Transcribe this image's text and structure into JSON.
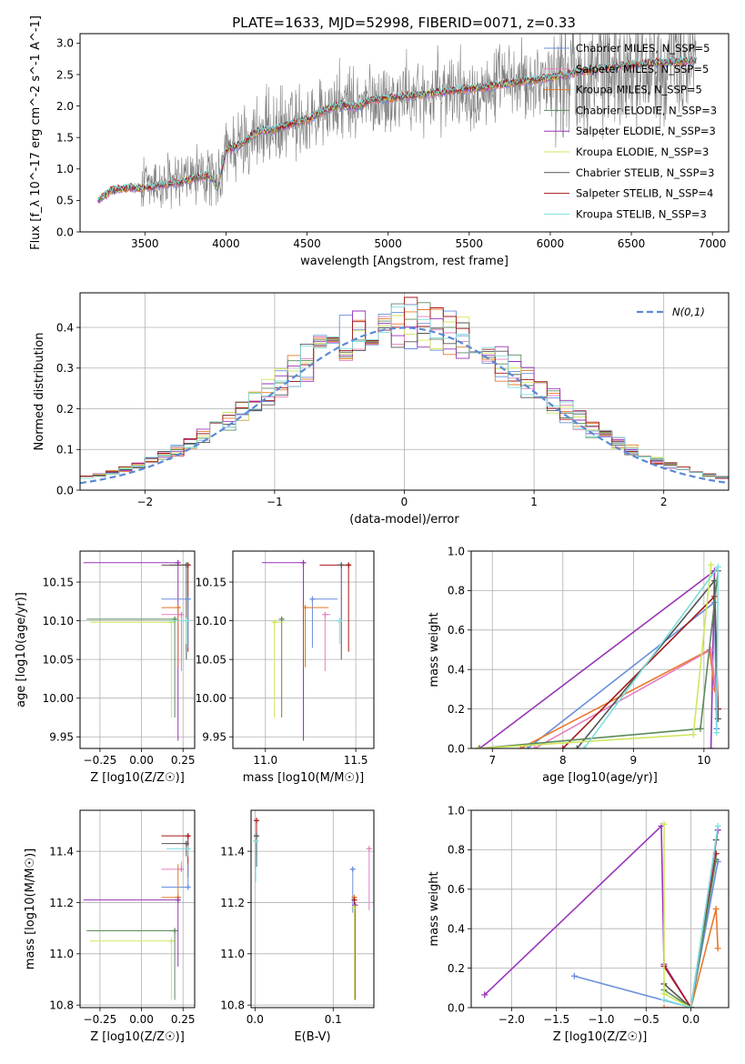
{
  "figure": {
    "title": "PLATE=1633, MJD=52998, FIBERID=0071, z=0.33"
  },
  "chart_data": [
    {
      "id": "spectrum",
      "type": "line",
      "xlabel": "wavelength [Angstrom, rest frame]",
      "ylabel": "Flux [f_λ 10^-17 erg cm^-2 s^-1 A^-1]",
      "xlim": [
        3100,
        7100
      ],
      "ylim": [
        0,
        3.15
      ],
      "xticks": [
        3500,
        4000,
        4500,
        5000,
        5500,
        6000,
        6500,
        7000
      ],
      "yticks": [
        0.0,
        0.5,
        1.0,
        1.5,
        2.0,
        2.5,
        3.0
      ],
      "grid": false,
      "legend_position": "top-right",
      "data_range": [
        3210,
        6900
      ],
      "continuum_anchors": {
        "x": [
          3210,
          3300,
          3400,
          3500,
          3600,
          3700,
          3800,
          3900,
          3950,
          4000,
          4100,
          4200,
          4300,
          4400,
          4500,
          4600,
          4700,
          4800,
          4900,
          5000,
          5200,
          5400,
          5600,
          5800,
          6000,
          6200,
          6400,
          6600,
          6900
        ],
        "y": [
          0.5,
          0.66,
          0.7,
          0.7,
          0.75,
          0.78,
          0.85,
          0.9,
          0.7,
          1.3,
          1.4,
          1.6,
          1.62,
          1.72,
          1.78,
          1.92,
          2.02,
          1.98,
          2.1,
          2.12,
          2.18,
          2.25,
          2.3,
          2.38,
          2.45,
          2.55,
          2.62,
          2.68,
          2.72
        ]
      },
      "series": [
        {
          "name": "Chabrier MILES, N_SSP=5",
          "color": "#6a8fdc"
        },
        {
          "name": "Salpeter MILES, N_SSP=5",
          "color": "#e57fbf"
        },
        {
          "name": "Kroupa MILES, N_SSP=5",
          "color": "#e8792a"
        },
        {
          "name": "Chabrier ELODIE, N_SSP=3",
          "color": "#5c8a5c"
        },
        {
          "name": "Salpeter ELODIE, N_SSP=3",
          "color": "#9a35b8"
        },
        {
          "name": "Kroupa ELODIE, N_SSP=3",
          "color": "#cfe65c"
        },
        {
          "name": "Chabrier STELIB, N_SSP=3",
          "color": "#555555"
        },
        {
          "name": "Salpeter STELIB, N_SSP=4",
          "color": "#a81818"
        },
        {
          "name": "Kroupa STELIB, N_SSP=3",
          "color": "#7fdede"
        }
      ],
      "data_color": "#808080"
    },
    {
      "id": "residuals",
      "type": "line",
      "xlabel": "(data-model)/error",
      "ylabel": "Normed distribution",
      "xlim": [
        -2.5,
        2.5
      ],
      "ylim": [
        0,
        0.485
      ],
      "xticks": [
        -2,
        -1,
        0,
        1,
        2
      ],
      "yticks": [
        0.0,
        0.1,
        0.2,
        0.3,
        0.4
      ],
      "grid": true,
      "legend_position": "top-right",
      "legend_label": "N(0,1)",
      "reference_curve": {
        "mean": 0,
        "sigma": 1,
        "color": "#5b8ad6"
      },
      "bin_width": 0.1,
      "histogram_colors": [
        "#6a8fdc",
        "#e57fbf",
        "#e8792a",
        "#5c8a5c",
        "#9a35b8",
        "#cfe65c",
        "#555555",
        "#a81818",
        "#7fdede"
      ]
    },
    {
      "id": "age-vs-Z",
      "type": "scatter",
      "xlabel": "Z [log10(Z/Z☉)]",
      "ylabel": "age [log10(age/yr)]",
      "xlim": [
        -0.37,
        0.32
      ],
      "ylim": [
        9.935,
        10.19
      ],
      "xticks": [
        -0.25,
        0.0,
        0.25
      ],
      "yticks": [
        9.95,
        10.0,
        10.05,
        10.1,
        10.15
      ],
      "grid": true,
      "points": [
        {
          "x": 0.22,
          "y": 10.175,
          "x0": -0.35,
          "y0": 9.945,
          "color": "#9a35b8"
        },
        {
          "x": 0.28,
          "y": 10.172,
          "x0": 0.17,
          "y0": 10.06,
          "color": "#a81818"
        },
        {
          "x": 0.27,
          "y": 10.172,
          "x0": 0.12,
          "y0": 10.05,
          "color": "#555555"
        },
        {
          "x": 0.28,
          "y": 10.128,
          "x0": 0.12,
          "y0": 10.065,
          "color": "#6a8fdc"
        },
        {
          "x": 0.22,
          "y": 10.117,
          "x0": 0.12,
          "y0": 10.04,
          "color": "#e8792a"
        },
        {
          "x": 0.24,
          "y": 10.108,
          "x0": 0.12,
          "y0": 10.035,
          "color": "#e57fbf"
        },
        {
          "x": 0.2,
          "y": 10.102,
          "x0": -0.33,
          "y0": 9.975,
          "color": "#5c8a5c"
        },
        {
          "x": 0.27,
          "y": 10.1,
          "x0": 0.15,
          "y0": 10.07,
          "color": "#7fdede"
        },
        {
          "x": 0.18,
          "y": 10.098,
          "x0": -0.31,
          "y0": 9.975,
          "color": "#cfe65c"
        }
      ]
    },
    {
      "id": "age-vs-mass",
      "type": "scatter",
      "xlabel": "mass [log10(M/M☉)]",
      "ylabel": "",
      "xlim": [
        10.82,
        11.6
      ],
      "ylim": [
        9.935,
        10.19
      ],
      "xticks": [
        11.0,
        11.5
      ],
      "yticks": [
        9.95,
        10.0,
        10.05,
        10.1,
        10.15
      ],
      "grid": true,
      "points": [
        {
          "x": 11.21,
          "y": 10.175,
          "x0": 10.98,
          "y0": 9.945,
          "color": "#9a35b8"
        },
        {
          "x": 11.46,
          "y": 10.172,
          "x0": 11.3,
          "y0": 10.06,
          "color": "#a81818"
        },
        {
          "x": 11.42,
          "y": 10.172,
          "x0": 11.4,
          "y0": 10.05,
          "color": "#555555"
        },
        {
          "x": 11.26,
          "y": 10.128,
          "x0": 11.4,
          "y0": 10.065,
          "color": "#6a8fdc"
        },
        {
          "x": 11.22,
          "y": 10.117,
          "x0": 11.35,
          "y0": 10.04,
          "color": "#e8792a"
        },
        {
          "x": 11.33,
          "y": 10.108,
          "x0": 11.36,
          "y0": 10.035,
          "color": "#e57fbf"
        },
        {
          "x": 11.09,
          "y": 10.102,
          "x0": 11.1,
          "y0": 9.975,
          "color": "#5c8a5c"
        },
        {
          "x": 11.41,
          "y": 10.1,
          "x0": 11.38,
          "y0": 10.07,
          "color": "#7fdede"
        },
        {
          "x": 11.05,
          "y": 10.098,
          "x0": 11.1,
          "y0": 9.975,
          "color": "#cfe65c"
        }
      ]
    },
    {
      "id": "mass-weight-vs-age",
      "type": "line",
      "xlabel": "age [log10(age/yr)]",
      "ylabel": "mass weight",
      "xlim": [
        6.7,
        10.35
      ],
      "ylim": [
        0,
        1.0
      ],
      "xticks": [
        7,
        8,
        9,
        10
      ],
      "yticks": [
        0.0,
        0.2,
        0.4,
        0.6,
        0.8,
        1.0
      ],
      "grid": true,
      "series": [
        {
          "color": "#9a35b8",
          "x": [
            6.82,
            10.15,
            10.1
          ],
          "y": [
            0.0,
            0.9,
            0.0
          ]
        },
        {
          "color": "#6a8fdc",
          "x": [
            7.5,
            10.15,
            10.18
          ],
          "y": [
            0.0,
            0.74,
            0.1
          ]
        },
        {
          "color": "#e8792a",
          "x": [
            7.4,
            10.08,
            10.15
          ],
          "y": [
            0.0,
            0.5,
            0.3
          ]
        },
        {
          "color": "#e57fbf",
          "x": [
            7.6,
            10.1,
            10.2
          ],
          "y": [
            0.0,
            0.5,
            0.2
          ]
        },
        {
          "color": "#a81818",
          "x": [
            8.0,
            10.15,
            10.2
          ],
          "y": [
            0.0,
            0.77,
            0.2
          ]
        },
        {
          "color": "#555555",
          "x": [
            8.2,
            10.15,
            10.2
          ],
          "y": [
            0.0,
            0.85,
            0.15
          ]
        },
        {
          "color": "#5c8a5c",
          "x": [
            6.8,
            9.95,
            10.2
          ],
          "y": [
            0.0,
            0.1,
            0.9
          ]
        },
        {
          "color": "#cfe65c",
          "x": [
            6.8,
            9.85,
            10.1
          ],
          "y": [
            0.0,
            0.07,
            0.93
          ]
        },
        {
          "color": "#7fdede",
          "x": [
            8.3,
            10.2,
            10.18
          ],
          "y": [
            0.0,
            0.92,
            0.08
          ]
        }
      ]
    },
    {
      "id": "mass-vs-Z",
      "type": "scatter",
      "xlabel": "Z [log10(Z/Z☉)]",
      "ylabel": "mass [log10(M/M☉)]",
      "xlim": [
        -0.37,
        0.32
      ],
      "ylim": [
        10.79,
        11.56
      ],
      "xticks": [
        -0.25,
        0.0,
        0.25
      ],
      "yticks": [
        10.8,
        11.0,
        11.2,
        11.4
      ],
      "grid": true,
      "points": [
        {
          "x": 0.28,
          "y": 11.46,
          "x0": 0.12,
          "y0": 11.3,
          "color": "#a81818"
        },
        {
          "x": 0.27,
          "y": 11.43,
          "x0": 0.12,
          "y0": 11.38,
          "color": "#555555"
        },
        {
          "x": 0.28,
          "y": 11.41,
          "x0": 0.15,
          "y0": 11.38,
          "color": "#7fdede"
        },
        {
          "x": 0.24,
          "y": 11.33,
          "x0": 0.12,
          "y0": 11.36,
          "color": "#e57fbf"
        },
        {
          "x": 0.28,
          "y": 11.26,
          "x0": 0.12,
          "y0": 11.35,
          "color": "#6a8fdc"
        },
        {
          "x": 0.22,
          "y": 11.22,
          "x0": 0.12,
          "y0": 11.35,
          "color": "#e8792a"
        },
        {
          "x": 0.22,
          "y": 11.21,
          "x0": -0.35,
          "y0": 10.95,
          "color": "#9a35b8"
        },
        {
          "x": 0.2,
          "y": 11.09,
          "x0": -0.33,
          "y0": 10.82,
          "color": "#5c8a5c"
        },
        {
          "x": 0.18,
          "y": 11.05,
          "x0": -0.31,
          "y0": 10.82,
          "color": "#cfe65c"
        }
      ]
    },
    {
      "id": "mass-vs-ebv",
      "type": "scatter",
      "xlabel": "E(B-V)",
      "ylabel": "",
      "xlim": [
        -0.005,
        0.152
      ],
      "ylim": [
        10.79,
        11.56
      ],
      "xticks": [
        0.0,
        0.1
      ],
      "yticks": [
        10.8,
        11.0,
        11.2,
        11.4
      ],
      "grid": true,
      "points": [
        {
          "x": 0.002,
          "y": 11.52,
          "y0": 11.38,
          "color": "#a81818"
        },
        {
          "x": 0.002,
          "y": 11.46,
          "y0": 11.34,
          "color": "#555555"
        },
        {
          "x": 0.001,
          "y": 11.44,
          "y0": 11.28,
          "color": "#7fdede"
        },
        {
          "x": 0.146,
          "y": 11.41,
          "y0": 11.17,
          "color": "#e57fbf"
        },
        {
          "x": 0.125,
          "y": 11.33,
          "y0": 11.16,
          "color": "#6a8fdc"
        },
        {
          "x": 0.127,
          "y": 11.22,
          "y0": 11.06,
          "color": "#e8792a"
        },
        {
          "x": 0.127,
          "y": 11.21,
          "y0": 11.11,
          "color": "#a81818"
        },
        {
          "x": 0.128,
          "y": 11.19,
          "y0": 10.82,
          "color": "#9a35b8"
        },
        {
          "x": 0.127,
          "y": 11.18,
          "y0": 10.82,
          "color": "#cfe65c"
        }
      ]
    },
    {
      "id": "mass-weight-vs-Z",
      "type": "line",
      "xlabel": "Z [log10(Z/Z☉)]",
      "ylabel": "mass weight",
      "xlim": [
        -2.45,
        0.42
      ],
      "ylim": [
        0,
        1.0
      ],
      "xticks": [
        -2.0,
        -1.5,
        -1.0,
        -0.5,
        0.0
      ],
      "yticks": [
        0.0,
        0.2,
        0.4,
        0.6,
        0.8,
        1.0
      ],
      "grid": true,
      "series": [
        {
          "color": "#9a35b8",
          "x": [
            -2.3,
            -0.33,
            -0.3,
            0.0,
            0.3
          ],
          "y": [
            0.065,
            0.92,
            0.22,
            0.0,
            0.9
          ]
        },
        {
          "color": "#6a8fdc",
          "x": [
            -1.3,
            0.0,
            0.3
          ],
          "y": [
            0.16,
            0.0,
            0.74
          ]
        },
        {
          "color": "#e8792a",
          "x": [
            -0.3,
            0.0,
            0.28,
            0.3
          ],
          "y": [
            0.0,
            0.0,
            0.5,
            0.3
          ]
        },
        {
          "color": "#a81818",
          "x": [
            -0.3,
            0.0,
            0.28
          ],
          "y": [
            0.21,
            0.0,
            0.78
          ]
        },
        {
          "color": "#555555",
          "x": [
            -0.3,
            0.0,
            0.28
          ],
          "y": [
            0.12,
            0.0,
            0.85
          ]
        },
        {
          "color": "#5c8a5c",
          "x": [
            -0.3,
            0.0,
            0.28
          ],
          "y": [
            0.09,
            0.0,
            0.75
          ]
        },
        {
          "color": "#cfe65c",
          "x": [
            -0.3,
            -0.3,
            0.0
          ],
          "y": [
            0.93,
            0.07,
            0.0
          ]
        },
        {
          "color": "#7fdede",
          "x": [
            -0.3,
            0.0,
            0.3
          ],
          "y": [
            0.04,
            0.0,
            0.92
          ]
        }
      ]
    }
  ]
}
